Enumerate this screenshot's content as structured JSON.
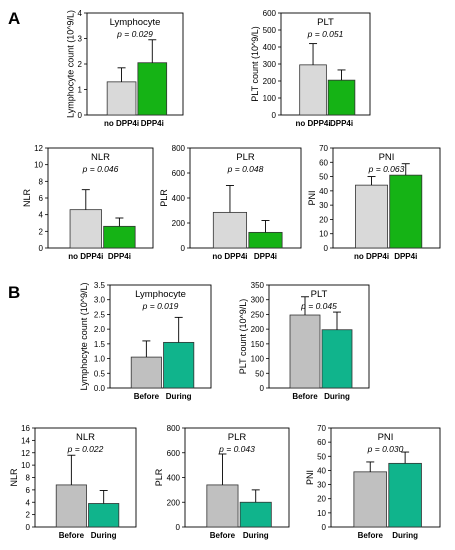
{
  "panels": [
    {
      "label": "A"
    },
    {
      "label": "B"
    }
  ],
  "chart_data": [
    {
      "type": "bar",
      "panel": "A",
      "title": "Lymphocyte",
      "ptext": "p = 0.029",
      "ylabel": "Lymphocyte count (10^9/L)",
      "xlabel": "",
      "categories": [
        "no DPP4i",
        "DPP4i"
      ],
      "values": [
        1.3,
        2.05
      ],
      "errors": [
        0.55,
        0.9
      ],
      "colors": [
        "#d9d9d9",
        "#15b315"
      ],
      "ylim": [
        0,
        4
      ],
      "yticks": [
        0,
        1,
        2,
        3,
        4
      ],
      "grid": false,
      "legend": "none"
    },
    {
      "type": "bar",
      "panel": "A",
      "title": "PLT",
      "ptext": "p = 0.051",
      "ylabel": "PLT count (10^9/L)",
      "xlabel": "",
      "categories": [
        "no DPP4i",
        "DPP4i"
      ],
      "values": [
        295,
        205
      ],
      "errors": [
        125,
        60
      ],
      "colors": [
        "#d9d9d9",
        "#15b315"
      ],
      "ylim": [
        0,
        600
      ],
      "yticks": [
        0,
        100,
        200,
        300,
        400,
        500,
        600
      ],
      "grid": false,
      "legend": "none"
    },
    {
      "type": "bar",
      "panel": "A",
      "title": "NLR",
      "ptext": "p = 0.046",
      "ylabel": "NLR",
      "xlabel": "",
      "categories": [
        "no DPP4i",
        "DPP4i"
      ],
      "values": [
        4.6,
        2.6
      ],
      "errors": [
        2.4,
        1.0
      ],
      "colors": [
        "#d9d9d9",
        "#15b315"
      ],
      "ylim": [
        0,
        12
      ],
      "yticks": [
        0,
        2,
        4,
        6,
        8,
        10,
        12
      ],
      "grid": false,
      "legend": "none"
    },
    {
      "type": "bar",
      "panel": "A",
      "title": "PLR",
      "ptext": "p = 0.048",
      "ylabel": "PLR",
      "xlabel": "",
      "categories": [
        "no DPP4i",
        "DPP4i"
      ],
      "values": [
        285,
        125
      ],
      "errors": [
        215,
        95
      ],
      "colors": [
        "#d9d9d9",
        "#15b315"
      ],
      "ylim": [
        0,
        800
      ],
      "yticks": [
        0,
        200,
        400,
        600,
        800
      ],
      "grid": false,
      "legend": "none"
    },
    {
      "type": "bar",
      "panel": "A",
      "title": "PNI",
      "ptext": "p = 0.063",
      "ylabel": "PNI",
      "xlabel": "",
      "categories": [
        "no DPP4i",
        "DPP4i"
      ],
      "values": [
        44,
        51
      ],
      "errors": [
        6,
        8
      ],
      "colors": [
        "#d9d9d9",
        "#15b315"
      ],
      "ylim": [
        0,
        70
      ],
      "yticks": [
        0,
        10,
        20,
        30,
        40,
        50,
        60,
        70
      ],
      "grid": false,
      "legend": "none"
    },
    {
      "type": "bar",
      "panel": "B",
      "title": "Lymphocyte",
      "ptext": "p = 0.019",
      "ylabel": "Lymphocyte count (10^9/L)",
      "xlabel": "",
      "categories": [
        "Before",
        "During"
      ],
      "values": [
        1.05,
        1.55
      ],
      "errors": [
        0.55,
        0.85
      ],
      "colors": [
        "#c0c0c0",
        "#10b48c"
      ],
      "ylim": [
        0,
        3.5
      ],
      "yticks": [
        0.0,
        0.5,
        1.0,
        1.5,
        2.0,
        2.5,
        3.0,
        3.5
      ],
      "ytick_decimals": 1,
      "grid": false,
      "legend": "none"
    },
    {
      "type": "bar",
      "panel": "B",
      "title": "PLT",
      "ptext": "p = 0.045",
      "ylabel": "PLT count (10^9/L)",
      "xlabel": "",
      "categories": [
        "Before",
        "During"
      ],
      "values": [
        248,
        198
      ],
      "errors": [
        62,
        60
      ],
      "colors": [
        "#c0c0c0",
        "#10b48c"
      ],
      "ylim": [
        0,
        350
      ],
      "yticks": [
        0,
        50,
        100,
        150,
        200,
        250,
        300,
        350
      ],
      "grid": false,
      "legend": "none"
    },
    {
      "type": "bar",
      "panel": "B",
      "title": "NLR",
      "ptext": "p = 0.022",
      "ylabel": "NLR",
      "xlabel": "",
      "categories": [
        "Before",
        "During"
      ],
      "values": [
        6.8,
        3.8
      ],
      "errors": [
        4.8,
        2.1
      ],
      "colors": [
        "#c0c0c0",
        "#10b48c"
      ],
      "ylim": [
        0,
        16
      ],
      "yticks": [
        0,
        2,
        4,
        6,
        8,
        10,
        12,
        14,
        16
      ],
      "grid": false,
      "legend": "none"
    },
    {
      "type": "bar",
      "panel": "B",
      "title": "PLR",
      "ptext": "p = 0.043",
      "ylabel": "PLR",
      "xlabel": "",
      "categories": [
        "Before",
        "During"
      ],
      "values": [
        340,
        200
      ],
      "errors": [
        250,
        100
      ],
      "colors": [
        "#c0c0c0",
        "#10b48c"
      ],
      "ylim": [
        0,
        800
      ],
      "yticks": [
        0,
        200,
        400,
        600,
        800
      ],
      "grid": false,
      "legend": "none"
    },
    {
      "type": "bar",
      "panel": "B",
      "title": "PNI",
      "ptext": "p = 0.030",
      "ylabel": "PNI",
      "xlabel": "",
      "categories": [
        "Before",
        "During"
      ],
      "values": [
        39,
        45
      ],
      "errors": [
        7,
        8
      ],
      "colors": [
        "#c0c0c0",
        "#10b48c"
      ],
      "ylim": [
        0,
        70
      ],
      "yticks": [
        0,
        10,
        20,
        30,
        40,
        50,
        60,
        70
      ],
      "grid": false,
      "legend": "none"
    }
  ]
}
